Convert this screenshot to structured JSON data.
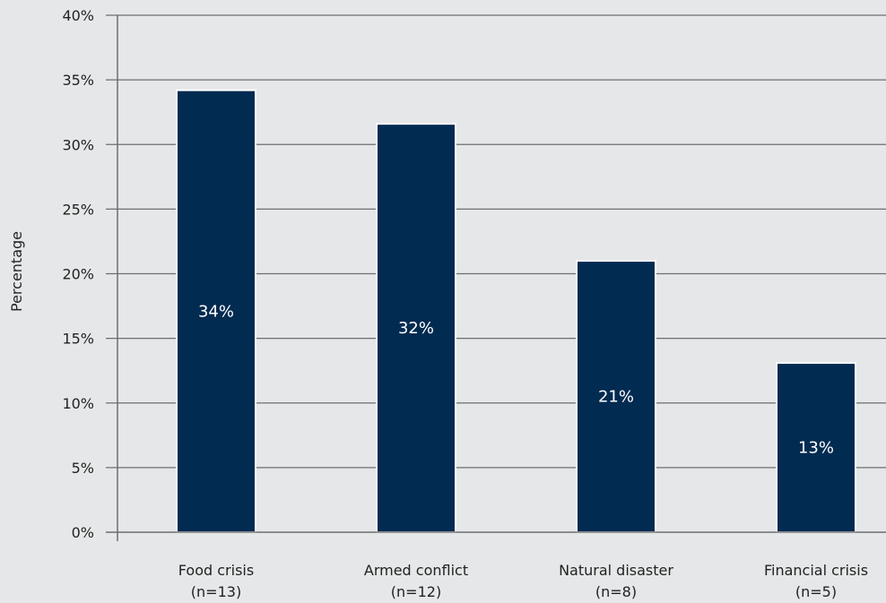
{
  "chart_data": {
    "type": "bar",
    "categories": [
      "Food crisis",
      "Armed conflict",
      "Natural disaster",
      "Financial crisis"
    ],
    "category_counts": [
      "(n=13)",
      "(n=12)",
      "(n=8)",
      "(n=5)"
    ],
    "values": [
      34.2,
      31.6,
      21.0,
      13.1
    ],
    "data_labels": [
      "34%",
      "32%",
      "21%",
      "13%"
    ],
    "ylabel": "Percentage",
    "ylim": [
      0,
      40
    ],
    "yticks": [
      "0%",
      "5%",
      "10%",
      "15%",
      "20%",
      "25%",
      "30%",
      "35%",
      "40%"
    ],
    "grid": true,
    "bar_color": "#022b52",
    "grid_color": "#6d6e71"
  }
}
